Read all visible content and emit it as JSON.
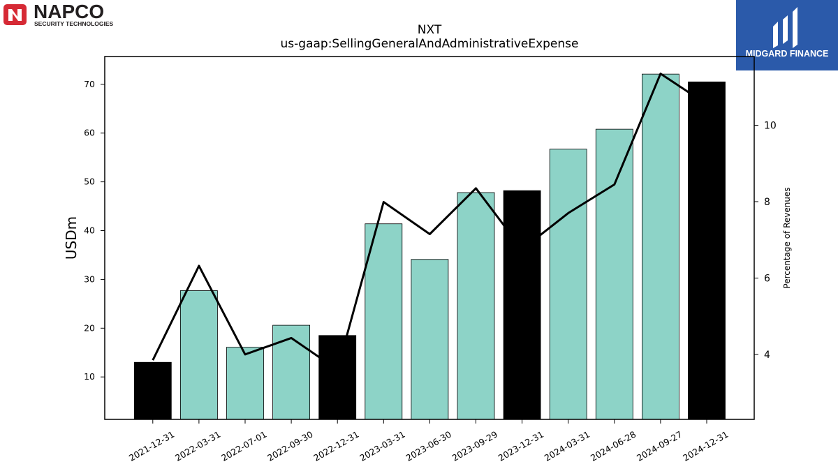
{
  "logos": {
    "napco_text": "NAPCO",
    "napco_sub": "SECURITY TECHNOLOGIES",
    "midgard_text": "MIDGARD FINANCE"
  },
  "chart_data": {
    "type": "bar",
    "title": "NXT",
    "subtitle": "us-gaap:SellingGeneralAndAdministrativeExpense",
    "ylabel": "USDm",
    "y2label": "Percentage of Revenues",
    "categories": [
      "2021-12-31",
      "2022-03-31",
      "2022-07-01",
      "2022-09-30",
      "2022-12-31",
      "2023-03-31",
      "2023-06-30",
      "2023-09-29",
      "2023-12-31",
      "2024-03-31",
      "2024-06-28",
      "2024-09-27",
      "2024-12-31"
    ],
    "series": [
      {
        "type": "bar",
        "values": [
          13.0,
          27.7,
          16.1,
          20.6,
          18.5,
          41.4,
          34.1,
          47.8,
          48.2,
          56.7,
          60.8,
          72.1,
          70.5
        ],
        "colors": [
          "#000000",
          "#8dd3c7",
          "#8dd3c7",
          "#8dd3c7",
          "#000000",
          "#8dd3c7",
          "#8dd3c7",
          "#8dd3c7",
          "#000000",
          "#8dd3c7",
          "#8dd3c7",
          "#8dd3c7",
          "#000000"
        ]
      },
      {
        "type": "line",
        "axis": "right",
        "color": "#000000",
        "values": [
          3.85,
          6.32,
          4.0,
          4.43,
          3.6,
          7.99,
          7.15,
          8.35,
          6.75,
          7.7,
          8.45,
          11.35,
          10.55
        ]
      }
    ],
    "ylim": [
      1.3,
      75.7
    ],
    "yticks": [
      10,
      20,
      30,
      40,
      50,
      60,
      70
    ],
    "y2lim": [
      2.3,
      11.8
    ],
    "y2ticks": [
      4,
      6,
      8,
      10
    ],
    "grid": false,
    "legend": "none"
  }
}
